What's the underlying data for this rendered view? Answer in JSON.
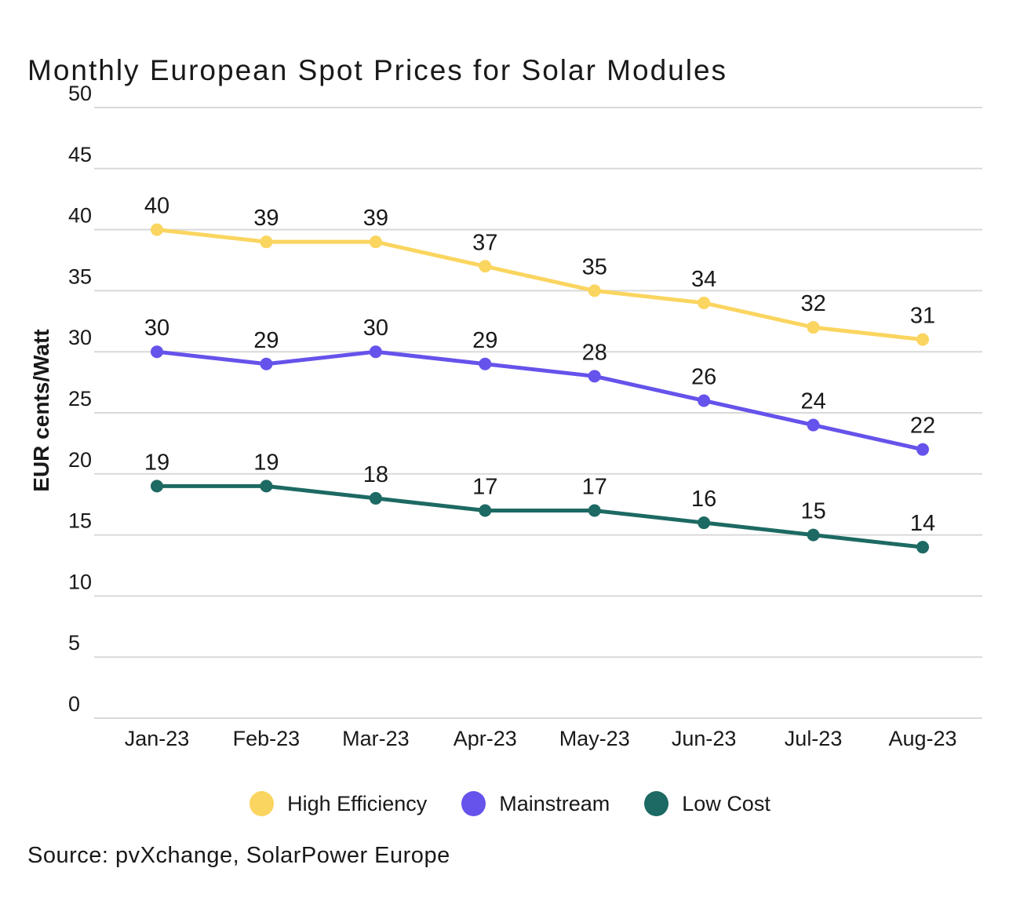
{
  "header": {
    "title": "Monthly European Spot Prices for Solar Modules"
  },
  "chart_data": {
    "type": "line",
    "x": [
      "Jan-23",
      "Feb-23",
      "Mar-23",
      "Apr-23",
      "May-23",
      "Jun-23",
      "Jul-23",
      "Aug-23"
    ],
    "series": [
      {
        "name": "High Efficiency",
        "color": "#FAD55F",
        "values": [
          40,
          39,
          39,
          37,
          35,
          34,
          32,
          31
        ]
      },
      {
        "name": "Mainstream",
        "color": "#6553EB",
        "values": [
          30,
          29,
          30,
          29,
          28,
          26,
          24,
          22
        ]
      },
      {
        "name": "Low Cost",
        "color": "#1D6963",
        "values": [
          19,
          19,
          18,
          17,
          17,
          16,
          15,
          14
        ]
      }
    ],
    "title": "Monthly European Spot Prices for Solar Modules",
    "xlabel": "",
    "ylabel": "EUR cents/Watt",
    "ylim": [
      0,
      50
    ],
    "yticks": [
      50,
      45,
      40,
      35,
      30,
      25,
      20,
      15,
      10,
      5,
      0
    ],
    "grid": true,
    "value_labels": true,
    "legend_position": "bottom"
  },
  "legend": {
    "items": [
      {
        "label": "High Efficiency",
        "color": "#FAD55F"
      },
      {
        "label": "Mainstream",
        "color": "#6553EB"
      },
      {
        "label": "Low Cost",
        "color": "#1D6963"
      }
    ]
  },
  "footer": {
    "source": "Source: pvXchange, SolarPower Europe"
  },
  "colors": {
    "text": "#191919",
    "grid": "#d9d9d9",
    "background": "#ffffff"
  }
}
